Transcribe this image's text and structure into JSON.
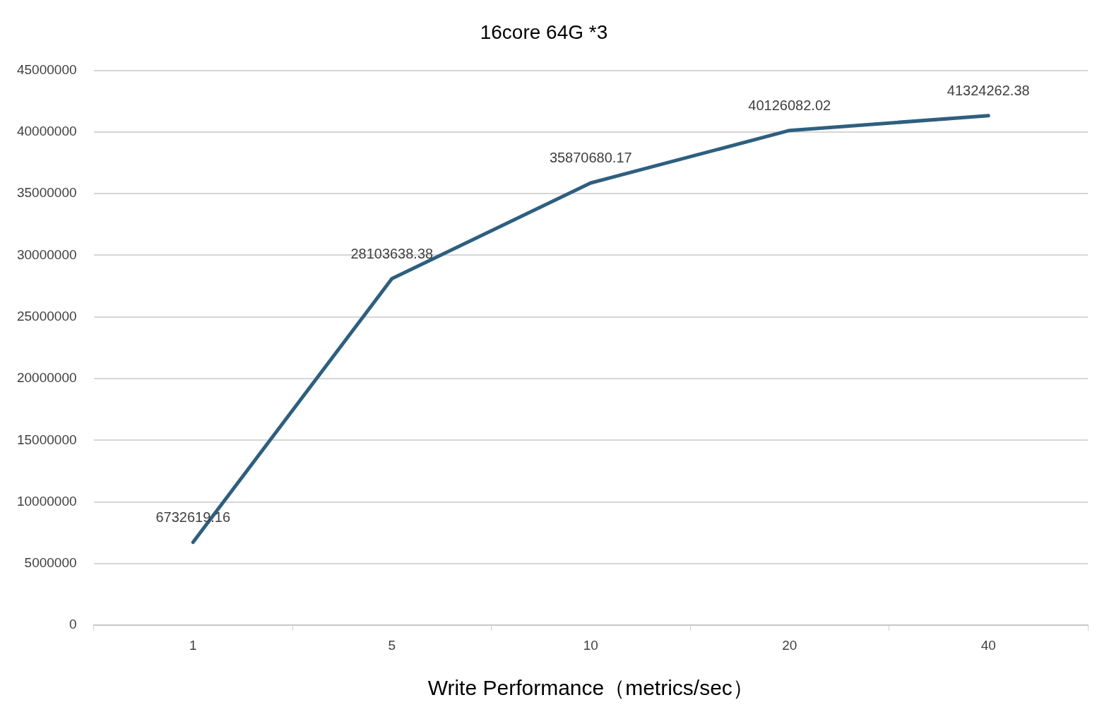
{
  "chart_data": {
    "type": "line",
    "title": "16core 64G *3",
    "xlabel": "Write Performance（metrics/sec）",
    "categories": [
      "1",
      "5",
      "10",
      "20",
      "40"
    ],
    "series": [
      {
        "color": "#2e5f7f",
        "values": [
          6732619.16,
          28103638.38,
          35870680.17,
          40126082.02,
          41324262.38
        ]
      }
    ],
    "ylim": [
      0,
      45000000
    ],
    "yticks": [
      0,
      5000000,
      10000000,
      15000000,
      20000000,
      25000000,
      30000000,
      35000000,
      40000000,
      45000000
    ],
    "grid": "y",
    "data_labels": true,
    "legend": false,
    "marker": "none",
    "line_style": "solid"
  }
}
